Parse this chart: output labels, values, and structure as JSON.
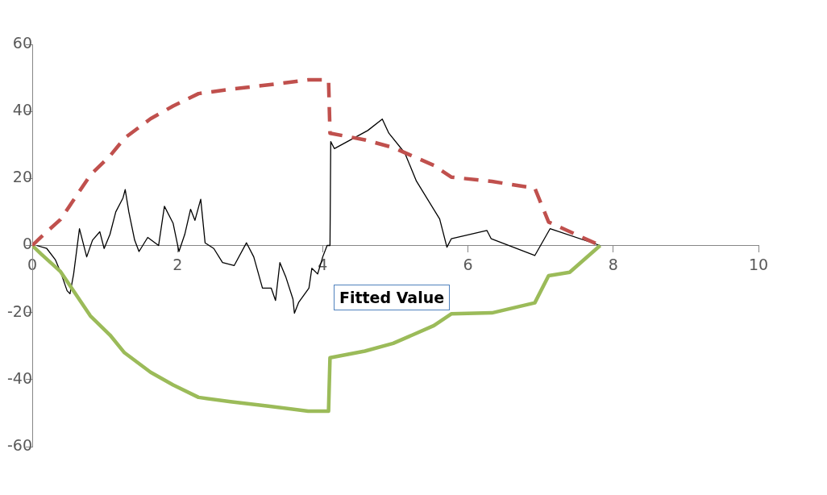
{
  "chart_data": {
    "type": "line",
    "xlim": [
      0,
      10
    ],
    "ylim": [
      -60,
      60
    ],
    "xticks": [
      0,
      2,
      4,
      6,
      8,
      10
    ],
    "yticks": [
      -60,
      -40,
      -20,
      0,
      20,
      40,
      60
    ],
    "grid": false,
    "legend": false,
    "marker": "none",
    "annotations": [
      "Fitted Value"
    ],
    "series": [
      {
        "color": "#c0504d",
        "line_style": "dashed",
        "x": [
          0,
          0.12,
          0.39,
          0.54,
          0.8,
          1.07,
          1.27,
          1.63,
          1.94,
          2.29,
          2.73,
          3.25,
          3.8,
          4.08,
          4.1,
          4.58,
          4.97,
          5.53,
          5.77,
          6.33,
          6.92,
          7.11,
          7.82
        ],
        "values": [
          0,
          2.5,
          7.8,
          12.6,
          21,
          26.7,
          32,
          37.8,
          41.6,
          45.3,
          46.6,
          47.9,
          49.4,
          49.4,
          33.5,
          31.5,
          29.2,
          23.9,
          20.4,
          19.1,
          17.1,
          7,
          0
        ]
      },
      {
        "color": "#9bbb59",
        "line_style": "solid",
        "x": [
          0,
          0.12,
          0.39,
          0.54,
          0.8,
          1.07,
          1.27,
          1.63,
          1.94,
          2.29,
          2.73,
          3.25,
          3.8,
          4.08,
          4.1,
          4.58,
          4.97,
          5.53,
          5.77,
          6.33,
          6.92,
          7.11,
          7.4,
          7.82
        ],
        "values": [
          0,
          -2.5,
          -7.8,
          -12.6,
          -21,
          -26.7,
          -32,
          -37.8,
          -41.6,
          -45.3,
          -46.6,
          -47.9,
          -49.4,
          -49.4,
          -33.5,
          -31.5,
          -29.2,
          -23.9,
          -20.4,
          -20.1,
          -17.1,
          -9,
          -8,
          0
        ]
      },
      {
        "color": "#000000",
        "line_style": "solid",
        "x": [
          0.06,
          0.2,
          0.32,
          0.4,
          0.48,
          0.52,
          0.57,
          0.65,
          0.75,
          0.83,
          0.93,
          0.99,
          1.07,
          1.15,
          1.25,
          1.28,
          1.33,
          1.41,
          1.47,
          1.59,
          1.74,
          1.82,
          1.94,
          2.02,
          2.1,
          2.18,
          2.24,
          2.32,
          2.38,
          2.5,
          2.62,
          2.78,
          2.95,
          3.05,
          3.17,
          3.29,
          3.35,
          3.41,
          3.49,
          3.59,
          3.61,
          3.67,
          3.81,
          3.85,
          3.93,
          4.0,
          4.06,
          4.1,
          4.11,
          4.16,
          4.62,
          4.82,
          4.91,
          5.13,
          5.29,
          5.61,
          5.71,
          5.77,
          6.26,
          6.32,
          6.92,
          7.13,
          7.82
        ],
        "values": [
          0,
          -0.9,
          -4.3,
          -8.5,
          -13.5,
          -14.4,
          -8.5,
          5,
          -3.4,
          1.6,
          4.1,
          -0.9,
          3.3,
          10,
          14.2,
          16.7,
          10,
          1.6,
          -1.8,
          2.4,
          0,
          11.7,
          6.6,
          -1.8,
          3.3,
          10.8,
          7.5,
          13.8,
          0.8,
          -0.9,
          -5.1,
          -6,
          0.8,
          -3.4,
          -12.7,
          -12.7,
          -16.4,
          -5.1,
          -9.3,
          -16,
          -20.2,
          -16.9,
          -12.7,
          -6.8,
          -8.5,
          -3.4,
          0,
          0,
          31,
          28.9,
          34.3,
          37.7,
          33.5,
          27.6,
          19.2,
          7.9,
          -0.5,
          2,
          4.5,
          2,
          -3,
          5,
          0
        ]
      }
    ]
  }
}
